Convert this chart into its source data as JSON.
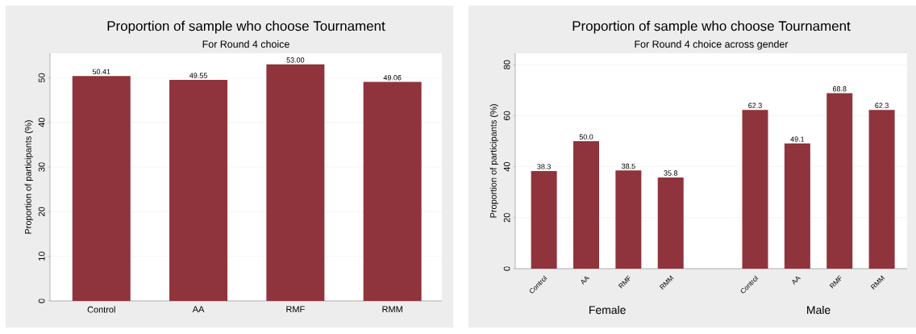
{
  "chart_data": [
    {
      "type": "bar",
      "title": "Proportion of sample who choose Tournament",
      "subtitle": "For Round 4 choice",
      "ylabel": "Proportion of participants (%)",
      "categories": [
        "Control",
        "AA",
        "RMF",
        "RMM"
      ],
      "values": [
        50.41,
        49.55,
        53.0,
        49.06
      ],
      "value_labels": [
        "50.41",
        "49.55",
        "53.00",
        "49.06"
      ],
      "color": "#8f343c",
      "ylim": [
        0,
        55.5
      ],
      "yticks": [
        0,
        10,
        20,
        30,
        40,
        50
      ],
      "grid": "y"
    },
    {
      "type": "bar",
      "title": "Proportion of sample who choose Tournament",
      "subtitle": "For Round 4 choice across gender",
      "ylabel": "Proportion of participants (%)",
      "categories": [
        "Control",
        "AA",
        "RMF",
        "RMM",
        null,
        "Control",
        "AA",
        "RMF",
        "RMM"
      ],
      "values": [
        38.3,
        50.0,
        38.5,
        35.8,
        null,
        62.3,
        49.1,
        68.8,
        62.3
      ],
      "value_labels": [
        "38.3",
        "50.0",
        "38.5",
        "35.8",
        null,
        "62.3",
        "49.1",
        "68.8",
        "62.3"
      ],
      "annotations": [
        "Female",
        "Male"
      ],
      "color": "#8f343c",
      "ylim": [
        0,
        84.5
      ],
      "yticks": [
        0,
        20,
        40,
        60,
        80
      ],
      "grid": "y"
    }
  ]
}
